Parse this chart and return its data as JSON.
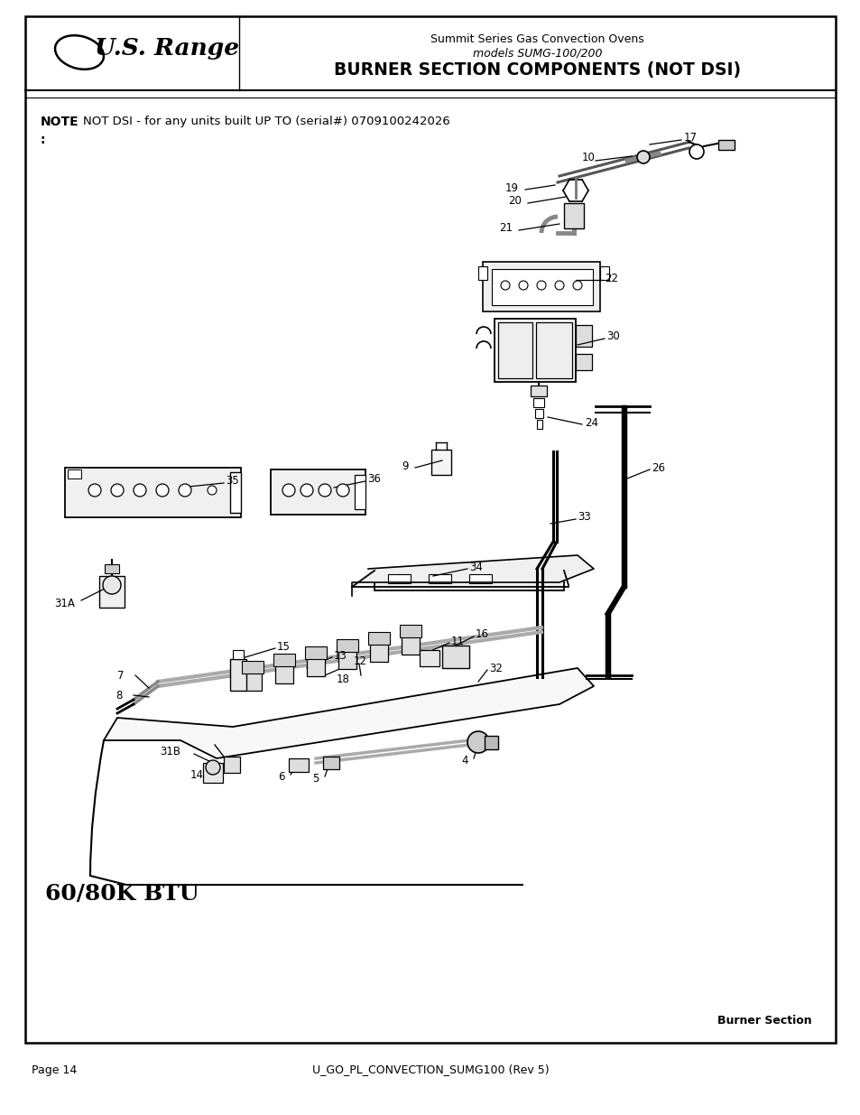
{
  "page_title_line1": "Summit Series Gas Convection Ovens",
  "page_title_line2": "models SUMG-100/200",
  "page_title_line3": "BURNER SECTION COMPONENTS (NOT DSI)",
  "brand": "U.S. Range",
  "note_title": "NOTE",
  "note_text": "NOT DSI - for any units built UP TO (serial#) 0709100242026",
  "footer_left": "Page 14",
  "footer_center": "U_GO_PL_CONVECTION_SUMG100 (Rev 5)",
  "section_label": "Burner Section",
  "btu_label": "60/80K BTU",
  "bg_color": "#ffffff",
  "border_color": "#000000",
  "text_color": "#000000",
  "header_line1": "Summit Series Gas Convection Ovens",
  "header_line2": "models SUMG-100/200",
  "header_line3": "BURNER SECTION COMPONENTS (NOT DSI)"
}
